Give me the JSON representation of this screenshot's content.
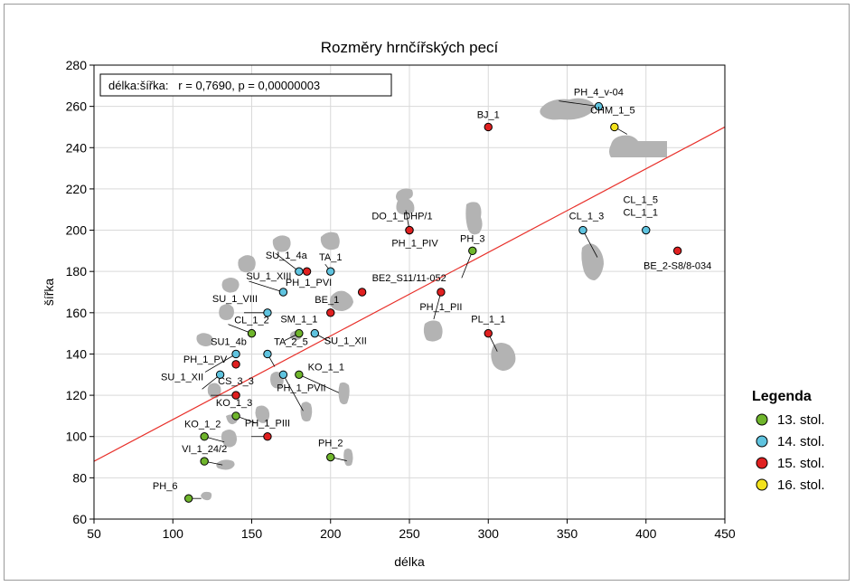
{
  "chart_data": {
    "type": "scatter",
    "title": "Rozměry hrnčířských pecí",
    "xlabel": "délka",
    "ylabel": "šířka",
    "xlim": [
      50,
      450
    ],
    "ylim": [
      60,
      280
    ],
    "x_ticks": [
      50,
      100,
      150,
      200,
      250,
      300,
      350,
      400,
      450
    ],
    "y_ticks": [
      60,
      80,
      100,
      120,
      140,
      160,
      180,
      200,
      220,
      240,
      260,
      280
    ],
    "grid": true,
    "annotation": "délka:šířka:   r = 0,7690, p = 0,00000003",
    "regression_line": {
      "from": [
        50,
        88
      ],
      "to": [
        450,
        250
      ],
      "color": "#e8302a"
    },
    "legend": {
      "title": "Legenda",
      "placement": "right",
      "items": [
        {
          "label": "13. stol.",
          "color": "#6fb52c"
        },
        {
          "label": "14. stol.",
          "color": "#5fc3df"
        },
        {
          "label": "15. stol.",
          "color": "#e02020"
        },
        {
          "label": "16. stol.",
          "color": "#f3e21c"
        }
      ]
    },
    "points": [
      {
        "label": "PH_6",
        "x": 110,
        "y": 70,
        "century": 13
      },
      {
        "label": "VI_1_24/2",
        "x": 120,
        "y": 88,
        "century": 13
      },
      {
        "label": "KO_1_2",
        "x": 120,
        "y": 100,
        "century": 13
      },
      {
        "label": "KO_1_3",
        "x": 140,
        "y": 110,
        "century": 13
      },
      {
        "label": "CL_1_2",
        "x": 150,
        "y": 150,
        "century": 13
      },
      {
        "label": "SM_1_1",
        "x": 180,
        "y": 150,
        "century": 13
      },
      {
        "label": "KO_1_1",
        "x": 180,
        "y": 130,
        "century": 13
      },
      {
        "label": "PH_2",
        "x": 200,
        "y": 90,
        "century": 13
      },
      {
        "label": "PH_3",
        "x": 290,
        "y": 190,
        "century": 13
      },
      {
        "label": "SU_1_XII",
        "x": 130,
        "y": 130,
        "century": 14
      },
      {
        "label": "SU1_4b",
        "x": 140,
        "y": 140,
        "century": 14
      },
      {
        "label": "SU_1_VIII",
        "x": 160,
        "y": 160,
        "century": 14
      },
      {
        "label": "TA_2_5",
        "x": 160,
        "y": 140,
        "century": 14
      },
      {
        "label": "PH_1_PVII",
        "x": 170,
        "y": 130,
        "century": 14
      },
      {
        "label": "SU_1_XIII",
        "x": 170,
        "y": 170,
        "century": 14
      },
      {
        "label": "SU_1_4a",
        "x": 180,
        "y": 180,
        "century": 14
      },
      {
        "label": "SU_1_XII",
        "x": 190,
        "y": 150,
        "century": 14
      },
      {
        "label": "TA_1",
        "x": 200,
        "y": 180,
        "century": 14
      },
      {
        "label": "CL_1_3",
        "x": 360,
        "y": 200,
        "century": 14
      },
      {
        "label": "CL_1_5 CL_1_1",
        "x": 400,
        "y": 200,
        "century": 14
      },
      {
        "label": "PH_4_v-04",
        "x": 370,
        "y": 260,
        "century": 14
      },
      {
        "label": "PH_1_PV",
        "x": 140,
        "y": 135,
        "century": 15
      },
      {
        "label": "CS_3_3",
        "x": 140,
        "y": 120,
        "century": 15
      },
      {
        "label": "PH_1_PIII",
        "x": 160,
        "y": 100,
        "century": 15
      },
      {
        "label": "PH_1_PVI",
        "x": 185,
        "y": 180,
        "century": 15
      },
      {
        "label": "BE_1",
        "x": 200,
        "y": 160,
        "century": 15
      },
      {
        "label": "BE2_S11/11-052",
        "x": 220,
        "y": 170,
        "century": 15
      },
      {
        "label": "DO_1_DHP/1",
        "x": 250,
        "y": 200,
        "century": 15
      },
      {
        "label": "PH_1_PIV",
        "x": 250,
        "y": 200,
        "century": 15
      },
      {
        "label": "PH_1_PII",
        "x": 270,
        "y": 170,
        "century": 15
      },
      {
        "label": "PL_1_1",
        "x": 300,
        "y": 150,
        "century": 15
      },
      {
        "label": "BJ_1",
        "x": 300,
        "y": 250,
        "century": 15
      },
      {
        "label": "BE_2-S8/8-034",
        "x": 420,
        "y": 190,
        "century": 15
      },
      {
        "label": "CHM_1_5",
        "x": 380,
        "y": 250,
        "century": 16
      }
    ]
  }
}
